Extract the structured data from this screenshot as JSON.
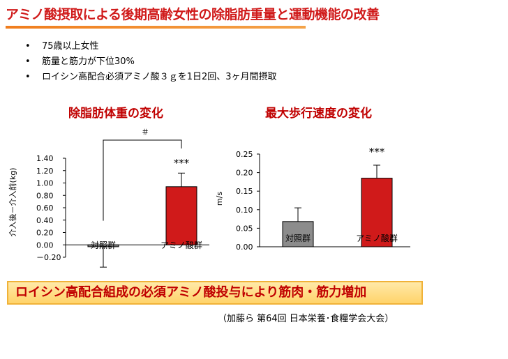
{
  "page": {
    "title": "アミノ酸摂取による後期高齢女性の除脂肪重量と運動機能の改善",
    "bullets": [
      "75歳以上女性",
      "筋量と筋力が下位30%",
      "ロイシン高配合必須アミノ酸３ｇを1日2回、3ヶ月間摂取"
    ],
    "conclusion": "ロイシン高配合組成の必須アミノ酸投与により筋肉・筋力増加",
    "source": "（加藤ら  第64回 日本栄養･食糧学会大会）",
    "colors": {
      "accent": "#c00000",
      "underline": "#f07d1d",
      "bar_control": "#8c8c8c",
      "bar_amino": "#d01a1a"
    }
  },
  "chart_data": [
    {
      "type": "bar",
      "title": "除脂肪体重の変化",
      "ylabel": "介入後－介入前(kg)",
      "categories": [
        "対照群",
        "アミノ酸群"
      ],
      "values": [
        -0.03,
        0.94
      ],
      "errors": [
        0.33,
        0.22
      ],
      "ylim": [
        -0.2,
        1.4
      ],
      "ticks": [
        "1.40",
        "1.20",
        "1.00",
        "0.80",
        "0.60",
        "0.40",
        "0.20",
        "0.00",
        "－0.20"
      ],
      "annotations": {
        "significance": "***",
        "comparison": "＃"
      }
    },
    {
      "type": "bar",
      "title": "最大歩行速度の変化",
      "ylabel": "m/s",
      "categories": [
        "対照群",
        "アミノ酸群"
      ],
      "values": [
        0.068,
        0.185
      ],
      "errors": [
        0.037,
        0.035
      ],
      "ylim": [
        0,
        0.25
      ],
      "ticks": [
        "0.25",
        "0.20",
        "0.15",
        "0.10",
        "0.05",
        "0.00"
      ],
      "annotations": {
        "significance": "***"
      }
    }
  ]
}
